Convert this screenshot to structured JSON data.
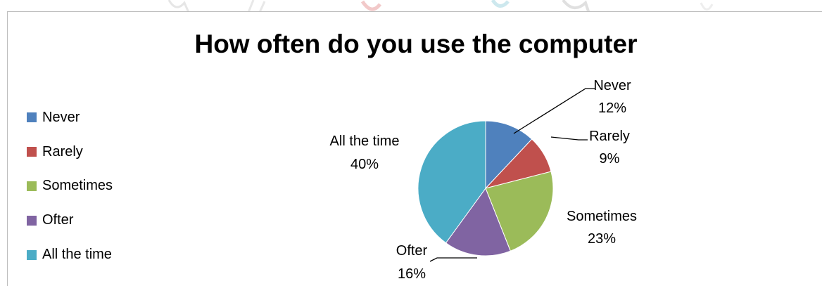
{
  "chart_data": {
    "type": "pie",
    "title": "How often do you use the computer",
    "legend_position": "left",
    "slices": [
      {
        "label": "Never",
        "value": 12,
        "value_text": "12%",
        "color": "#4F81BD"
      },
      {
        "label": "Rarely",
        "value": 9,
        "value_text": "9%",
        "color": "#C0504D"
      },
      {
        "label": "Sometimes",
        "value": 23,
        "value_text": "23%",
        "color": "#9BBB59"
      },
      {
        "label": "Ofter",
        "value": 16,
        "value_text": "16%",
        "color": "#8064A2"
      },
      {
        "label": "All the time",
        "value": 40,
        "value_text": "40%",
        "color": "#4BACC6"
      }
    ]
  }
}
